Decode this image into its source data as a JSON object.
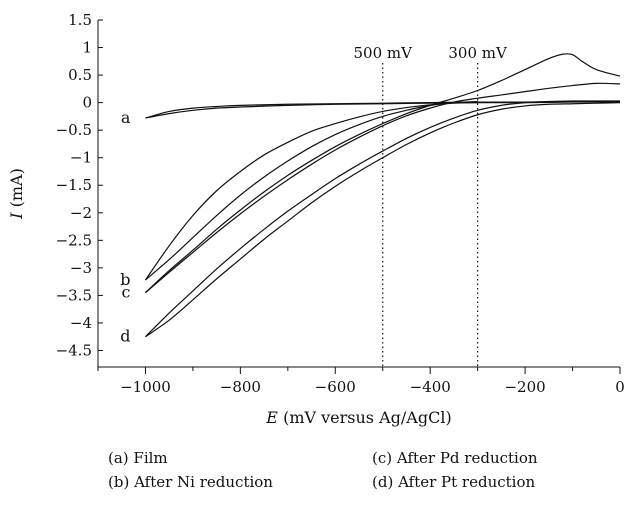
{
  "chart_data": {
    "type": "line",
    "xlabel": {
      "symbol": "E",
      "rest": " (mV versus Ag/AgCl)"
    },
    "ylabel": {
      "symbol": "I",
      "rest": " (mA)"
    },
    "xlim": [
      -1100,
      0
    ],
    "ylim": [
      -4.8,
      1.5
    ],
    "xticks": [
      -1000,
      -800,
      -600,
      -400,
      -200,
      0
    ],
    "xtick_labels": [
      "−1000",
      "−800",
      "−600",
      "−400",
      "−200",
      "0"
    ],
    "xminor_step": 100,
    "yticks": [
      1.5,
      1,
      0.5,
      0,
      -0.5,
      -1,
      -1.5,
      -2,
      -2.5,
      -3,
      -3.5,
      -4,
      -4.5
    ],
    "ytick_labels": [
      "1.5",
      "1",
      "0.5",
      "0",
      "−0.5",
      "−1",
      "−1.5",
      "−2",
      "−2.5",
      "−3",
      "−3.5",
      "−4",
      "−4.5"
    ],
    "grid": false,
    "annotations": [
      {
        "text": "500 mV",
        "x": -500
      },
      {
        "text": "300 mV",
        "x": -300
      }
    ],
    "curve_labels": [
      {
        "text": "a",
        "x": -1000,
        "y": -0.28
      },
      {
        "text": "b",
        "x": -1000,
        "y": -3.22
      },
      {
        "text": "c",
        "x": -1000,
        "y": -3.45
      },
      {
        "text": "d",
        "x": -1000,
        "y": -4.25
      }
    ],
    "series": [
      {
        "x": [
          -1000,
          -950,
          -900,
          -850,
          -800,
          -700,
          -600,
          -500,
          -400,
          -300,
          -200,
          -100,
          0
        ],
        "y": [
          -0.28,
          -0.16,
          -0.1,
          -0.07,
          -0.05,
          -0.03,
          -0.02,
          -0.01,
          0,
          0.01,
          0.01,
          0.02,
          0.02
        ]
      },
      {
        "x": [
          -1000,
          -950,
          -900,
          -850,
          -800,
          -700,
          -600,
          -500,
          -400,
          -300,
          -200,
          -100,
          0
        ],
        "y": [
          -0.28,
          -0.2,
          -0.14,
          -0.1,
          -0.08,
          -0.05,
          -0.03,
          -0.02,
          -0.01,
          0,
          0,
          0.01,
          0.01
        ]
      },
      {
        "x": [
          -1000,
          -950,
          -900,
          -850,
          -800,
          -750,
          -700,
          -650,
          -600,
          -550,
          -500,
          -450,
          -400,
          -350,
          -300
        ],
        "y": [
          -3.22,
          -2.6,
          -2.05,
          -1.6,
          -1.25,
          -0.95,
          -0.72,
          -0.52,
          -0.38,
          -0.26,
          -0.16,
          -0.09,
          -0.04,
          -0.01,
          0
        ]
      },
      {
        "x": [
          -1000,
          -950,
          -900,
          -850,
          -800,
          -750,
          -700,
          -650,
          -600,
          -550,
          -500,
          -450,
          -400,
          -350,
          -300
        ],
        "y": [
          -3.22,
          -2.85,
          -2.45,
          -2.05,
          -1.68,
          -1.35,
          -1.06,
          -0.8,
          -0.58,
          -0.4,
          -0.25,
          -0.14,
          -0.05,
          0,
          0.02
        ]
      },
      {
        "x": [
          -1000,
          -950,
          -900,
          -850,
          -800,
          -750,
          -700,
          -650,
          -600,
          -550,
          -500,
          -450,
          -400,
          -350,
          -300,
          -250,
          -200,
          -150,
          -120,
          -100,
          -80,
          -50,
          0
        ],
        "y": [
          -3.45,
          -3.05,
          -2.68,
          -2.3,
          -1.95,
          -1.62,
          -1.32,
          -1.05,
          -0.8,
          -0.58,
          -0.38,
          -0.2,
          -0.05,
          0.08,
          0.22,
          0.4,
          0.6,
          0.8,
          0.88,
          0.87,
          0.75,
          0.6,
          0.48
        ]
      },
      {
        "x": [
          -1000,
          -950,
          -900,
          -850,
          -800,
          -750,
          -700,
          -650,
          -600,
          -550,
          -500,
          -450,
          -400,
          -350,
          -300,
          -250,
          -200,
          -150,
          -100,
          -50,
          0
        ],
        "y": [
          -3.45,
          -3.08,
          -2.72,
          -2.36,
          -2.02,
          -1.7,
          -1.4,
          -1.12,
          -0.86,
          -0.63,
          -0.42,
          -0.24,
          -0.1,
          0.01,
          0.08,
          0.14,
          0.2,
          0.26,
          0.31,
          0.35,
          0.34
        ]
      },
      {
        "x": [
          -1000,
          -950,
          -900,
          -850,
          -800,
          -750,
          -700,
          -650,
          -600,
          -550,
          -500,
          -450,
          -400,
          -350,
          -300,
          -250,
          -200,
          -150,
          -100,
          -50,
          0
        ],
        "y": [
          -4.25,
          -3.82,
          -3.42,
          -3.02,
          -2.65,
          -2.3,
          -1.97,
          -1.67,
          -1.38,
          -1.12,
          -0.88,
          -0.65,
          -0.45,
          -0.28,
          -0.14,
          -0.05,
          0,
          0.02,
          0.03,
          0.03,
          0.03
        ]
      },
      {
        "x": [
          -1000,
          -950,
          -900,
          -850,
          -800,
          -750,
          -700,
          -650,
          -600,
          -550,
          -500,
          -450,
          -400,
          -350,
          -300,
          -250,
          -200,
          -150,
          -100,
          -50,
          0
        ],
        "y": [
          -4.25,
          -3.95,
          -3.58,
          -3.2,
          -2.84,
          -2.48,
          -2.15,
          -1.82,
          -1.52,
          -1.25,
          -1.0,
          -0.76,
          -0.55,
          -0.37,
          -0.22,
          -0.12,
          -0.06,
          -0.03,
          -0.02,
          -0.01,
          0
        ]
      }
    ]
  },
  "legend": {
    "a": "(a) Film",
    "b": "(b) After Ni reduction",
    "c": "(c) After Pd reduction",
    "d": "(d) After Pt reduction"
  }
}
